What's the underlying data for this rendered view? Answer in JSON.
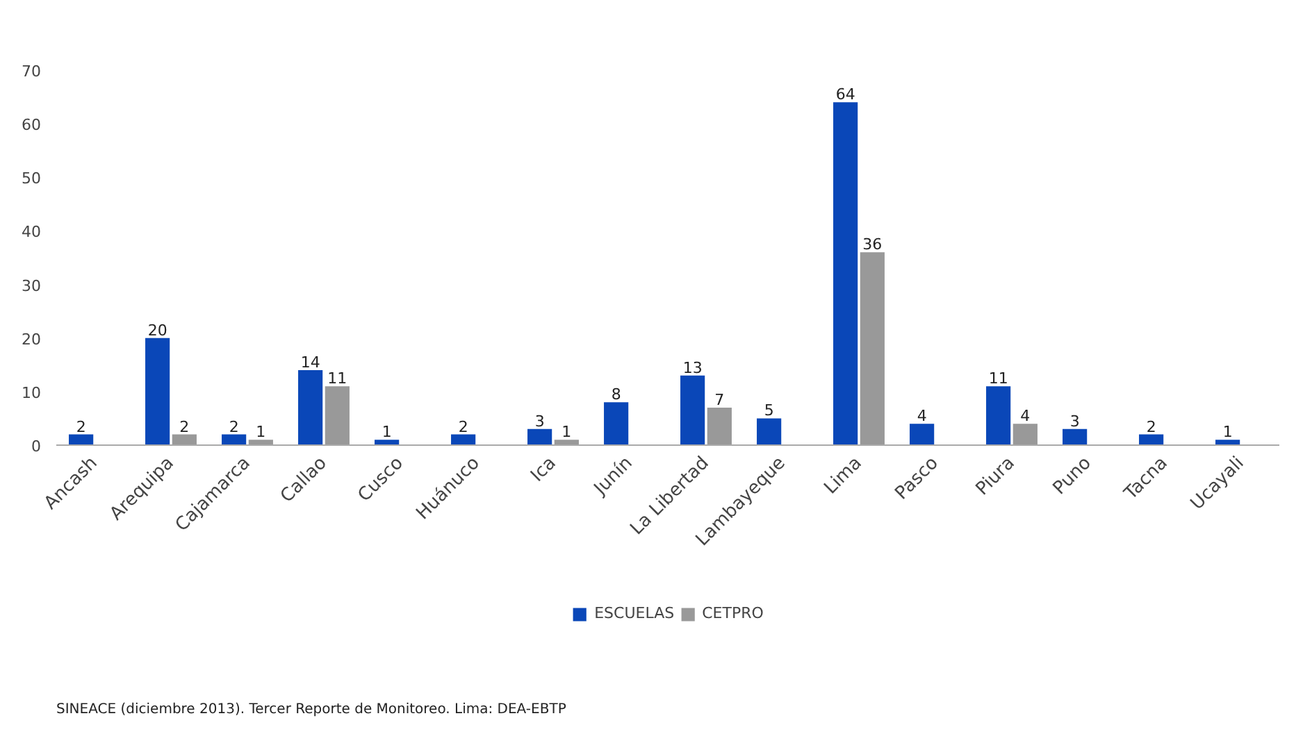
{
  "chart_data": {
    "type": "bar",
    "categories": [
      "Ancash",
      "Arequipa",
      "Cajamarca",
      "Callao",
      "Cusco",
      "Huánuco",
      "Ica",
      "Junín",
      "La Libertad",
      "Lambayeque",
      "Lima",
      "Pasco",
      "Piura",
      "Puno",
      "Tacna",
      "Ucayali"
    ],
    "series": [
      {
        "name": "ESCUELAS",
        "color": "#0a47b8",
        "values": [
          2,
          20,
          2,
          14,
          1,
          2,
          3,
          8,
          13,
          5,
          64,
          4,
          11,
          3,
          2,
          1
        ]
      },
      {
        "name": "CETPRO",
        "color": "#999999",
        "values": [
          null,
          2,
          1,
          11,
          null,
          null,
          1,
          null,
          7,
          null,
          36,
          null,
          4,
          null,
          null,
          null
        ]
      }
    ],
    "ylim": [
      0,
      70
    ],
    "yticks": [
      0,
      10,
      20,
      30,
      40,
      50,
      60,
      70
    ],
    "grid": false,
    "legend": "bottom",
    "data_labels": true,
    "annotations": [
      "SINEACE (diciembre 2013). Tercer Reporte de Monitoreo. Lima: DEA-EBTP"
    ]
  }
}
